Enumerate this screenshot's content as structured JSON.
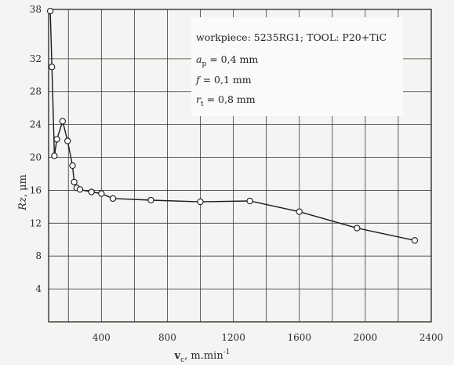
{
  "chart_data": {
    "type": "line",
    "title": "",
    "xlabel": "v_c, m.min^-1",
    "xlabel_main": "v",
    "xlabel_sub": "c",
    "xlabel_unit": ", m.min",
    "xlabel_sup": "-1",
    "ylabel": "Rz, μm",
    "ylabel_main": "Rz",
    "ylabel_unit": ", μm",
    "xlim": [
      80,
      2400
    ],
    "ylim": [
      0,
      38
    ],
    "x_ticks": [
      400,
      800,
      1200,
      1600,
      2000,
      2400
    ],
    "y_ticks": [
      4,
      8,
      12,
      16,
      20,
      24,
      28,
      32,
      38
    ],
    "grid": true,
    "annotations": {
      "workpiece": "workpiece: 5235RG1; TOOL: P20+TiC",
      "ap": {
        "symbol": "a",
        "sub": "p",
        "text": " = 0,4 mm"
      },
      "f": {
        "symbol": "f",
        "text": " = 0,1 mm"
      },
      "rt": {
        "symbol": "r",
        "sub": "t",
        "text": " = 0,8 mm"
      }
    },
    "series": [
      {
        "x": [
          90,
          100,
          115,
          130,
          165,
          195,
          225,
          235,
          250,
          270,
          340,
          400,
          470,
          700,
          1000,
          1300,
          1600,
          1950,
          2300
        ],
        "y": [
          37.8,
          31,
          20.2,
          22.2,
          24.4,
          22.0,
          19.0,
          17.0,
          16.3,
          16.1,
          15.8,
          15.6,
          15.0,
          14.8,
          14.6,
          14.7,
          13.4,
          11.4,
          9.9
        ]
      }
    ]
  }
}
